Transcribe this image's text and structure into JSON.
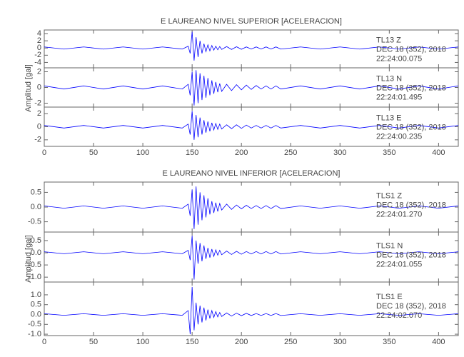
{
  "chart_data": [
    {
      "type": "line",
      "title": "E LAUREANO NIVEL SUPERIOR [ACELERACION]",
      "ylabel": "Amplitud [gal]",
      "xlim": [
        0,
        420
      ],
      "xticks": [
        0,
        50,
        100,
        150,
        200,
        250,
        300,
        350,
        400
      ],
      "x": [
        0,
        20,
        40,
        60,
        80,
        100,
        120,
        140,
        146,
        148,
        150,
        152,
        154,
        156,
        158,
        160,
        162,
        164,
        166,
        168,
        170,
        172,
        174,
        176,
        178,
        180,
        185,
        190,
        195,
        200,
        205,
        210,
        215,
        220,
        225,
        230,
        235,
        240,
        260,
        280,
        300,
        320,
        340,
        360,
        380,
        400,
        420
      ],
      "series": [
        {
          "name": "TL13  Z",
          "date": "DEC 18 (352), 2018",
          "time": "22:24:00.075",
          "color": "#0000ff",
          "ylim": [
            -5.5,
            5
          ],
          "yticks": [
            -4,
            -2,
            0,
            2,
            4
          ],
          "values": [
            0.3,
            -0.3,
            0.3,
            -0.3,
            0.3,
            -0.3,
            0.3,
            -0.3,
            0.5,
            -1.5,
            4.5,
            -3.5,
            3,
            -2.5,
            2,
            -1.5,
            1.2,
            -1,
            0.9,
            -0.8,
            0.7,
            -0.6,
            0.5,
            -0.5,
            0.4,
            -0.4,
            0.4,
            -0.4,
            0.35,
            -0.35,
            0.3,
            -0.3,
            0.3,
            -0.3,
            0.3,
            -0.3,
            0.3,
            -0.3,
            0.3,
            -0.3,
            0.3,
            -0.3,
            0.3,
            -0.3,
            0.3,
            -0.3,
            0.3
          ]
        },
        {
          "name": "TL13  N",
          "date": "DEC 18 (352), 2018",
          "time": "22:24:01.495",
          "color": "#0000ff",
          "ylim": [
            -2.5,
            2.5
          ],
          "yticks": [
            -2,
            0,
            2
          ],
          "values": [
            0.2,
            -0.2,
            0.2,
            -0.2,
            0.2,
            -0.2,
            0.2,
            -0.2,
            0.4,
            -1,
            2,
            -2.3,
            2.2,
            -2,
            1.8,
            -1.6,
            1.5,
            -1.3,
            1.2,
            -1,
            0.9,
            -0.8,
            0.7,
            -0.6,
            0.5,
            -0.5,
            0.4,
            -0.4,
            0.35,
            -0.3,
            0.3,
            -0.25,
            0.25,
            -0.2,
            0.2,
            -0.2,
            0.2,
            -0.2,
            0.2,
            -0.2,
            0.2,
            -0.2,
            0.2,
            -0.2,
            0.2,
            -0.2,
            0.2
          ]
        },
        {
          "name": "TL13  E",
          "date": "DEC 18 (352), 2018",
          "time": "22:24:00.235",
          "color": "#0000ff",
          "ylim": [
            -3,
            3
          ],
          "yticks": [
            -2,
            0,
            2
          ],
          "values": [
            0.2,
            -0.2,
            0.2,
            -0.2,
            0.2,
            -0.2,
            0.2,
            -0.2,
            0.4,
            -1.2,
            2.4,
            -2,
            1.8,
            -1.6,
            1.4,
            -1.2,
            1,
            -0.9,
            0.8,
            -0.7,
            0.6,
            -0.5,
            0.5,
            -0.4,
            0.4,
            -0.35,
            0.3,
            -0.3,
            0.3,
            -0.25,
            0.25,
            -0.2,
            0.2,
            -0.2,
            0.2,
            -0.2,
            0.2,
            -0.2,
            0.2,
            -0.2,
            0.2,
            -0.2,
            0.2,
            -0.2,
            0.2,
            -0.2,
            0.2
          ]
        }
      ]
    },
    {
      "type": "line",
      "title": "E LAUREANO NIVEL INFERIOR [ACELERACION]",
      "ylabel": "Amplitud [gal]",
      "xlim": [
        0,
        420
      ],
      "xticks": [
        0,
        50,
        100,
        150,
        200,
        250,
        300,
        350,
        400
      ],
      "x": [
        0,
        20,
        40,
        60,
        80,
        100,
        120,
        140,
        146,
        148,
        150,
        152,
        154,
        156,
        158,
        160,
        162,
        164,
        166,
        168,
        170,
        172,
        174,
        176,
        178,
        180,
        185,
        190,
        195,
        200,
        205,
        210,
        215,
        220,
        225,
        230,
        235,
        240,
        260,
        280,
        300,
        320,
        340,
        360,
        380,
        400,
        420
      ],
      "series": [
        {
          "name": "TLS1   Z",
          "date": "DEC 18 (352), 2018",
          "time": "22:24:01.270",
          "color": "#0000ff",
          "ylim": [
            -0.85,
            0.85
          ],
          "yticks": [
            -0.5,
            {
              "value": 0,
              "label": "0.0"
            },
            0.5
          ],
          "values": [
            0.04,
            -0.04,
            0.04,
            -0.04,
            0.04,
            -0.04,
            0.04,
            -0.04,
            0.1,
            -0.3,
            0.6,
            -0.75,
            0.7,
            -0.6,
            0.5,
            -0.45,
            0.4,
            -0.35,
            0.3,
            -0.25,
            0.2,
            -0.2,
            0.15,
            -0.15,
            0.12,
            -0.1,
            0.1,
            -0.08,
            0.07,
            -0.06,
            0.06,
            -0.05,
            0.05,
            -0.05,
            0.05,
            -0.05,
            0.05,
            -0.05,
            0.04,
            -0.04,
            0.04,
            -0.04,
            0.04,
            -0.04,
            0.04,
            -0.04,
            0.04
          ]
        },
        {
          "name": "TLS1   N",
          "date": "DEC 18 (352), 2018",
          "time": "22:24:01.055",
          "color": "#0000ff",
          "ylim": [
            -1.2,
            0.85
          ],
          "yticks": [
            {
              "value": -1,
              "label": "-1.0"
            },
            -0.5,
            {
              "value": 0,
              "label": "0.0"
            },
            0.5
          ],
          "values": [
            0.04,
            -0.04,
            0.04,
            -0.04,
            0.04,
            -0.04,
            0.04,
            -0.04,
            0.1,
            -0.3,
            0.7,
            -1.1,
            0.5,
            -0.45,
            0.4,
            -0.35,
            0.3,
            -0.25,
            0.2,
            -0.2,
            0.15,
            -0.15,
            0.12,
            -0.1,
            0.1,
            -0.08,
            0.07,
            -0.07,
            0.06,
            -0.06,
            0.05,
            -0.05,
            0.05,
            -0.05,
            0.05,
            -0.05,
            0.05,
            -0.05,
            0.04,
            -0.04,
            0.04,
            -0.04,
            0.04,
            -0.04,
            0.04,
            -0.04,
            0.04
          ]
        },
        {
          "name": "TLS1   E",
          "date": "DEC 18 (352), 2018",
          "time": "22:24:02.070",
          "color": "#0000ff",
          "ylim": [
            -1.07,
            1.65
          ],
          "yticks": [
            {
              "value": -1,
              "label": "-1.0"
            },
            -0.5,
            {
              "value": 0,
              "label": "0.0"
            },
            0.5,
            {
              "value": 1,
              "label": "1.0"
            }
          ],
          "values": [
            0.04,
            -0.04,
            0.04,
            -0.04,
            0.04,
            -0.04,
            0.04,
            -0.04,
            0.2,
            -1,
            1.4,
            -0.8,
            0.6,
            -0.5,
            0.45,
            -0.4,
            0.35,
            -0.3,
            0.25,
            -0.2,
            0.2,
            -0.15,
            0.15,
            -0.12,
            0.1,
            -0.1,
            0.08,
            -0.08,
            0.07,
            -0.06,
            0.06,
            -0.05,
            0.05,
            -0.05,
            0.05,
            -0.05,
            0.05,
            -0.05,
            0.04,
            -0.04,
            0.04,
            -0.04,
            0.04,
            -0.04,
            0.04,
            -0.04,
            0.04
          ]
        }
      ]
    }
  ]
}
